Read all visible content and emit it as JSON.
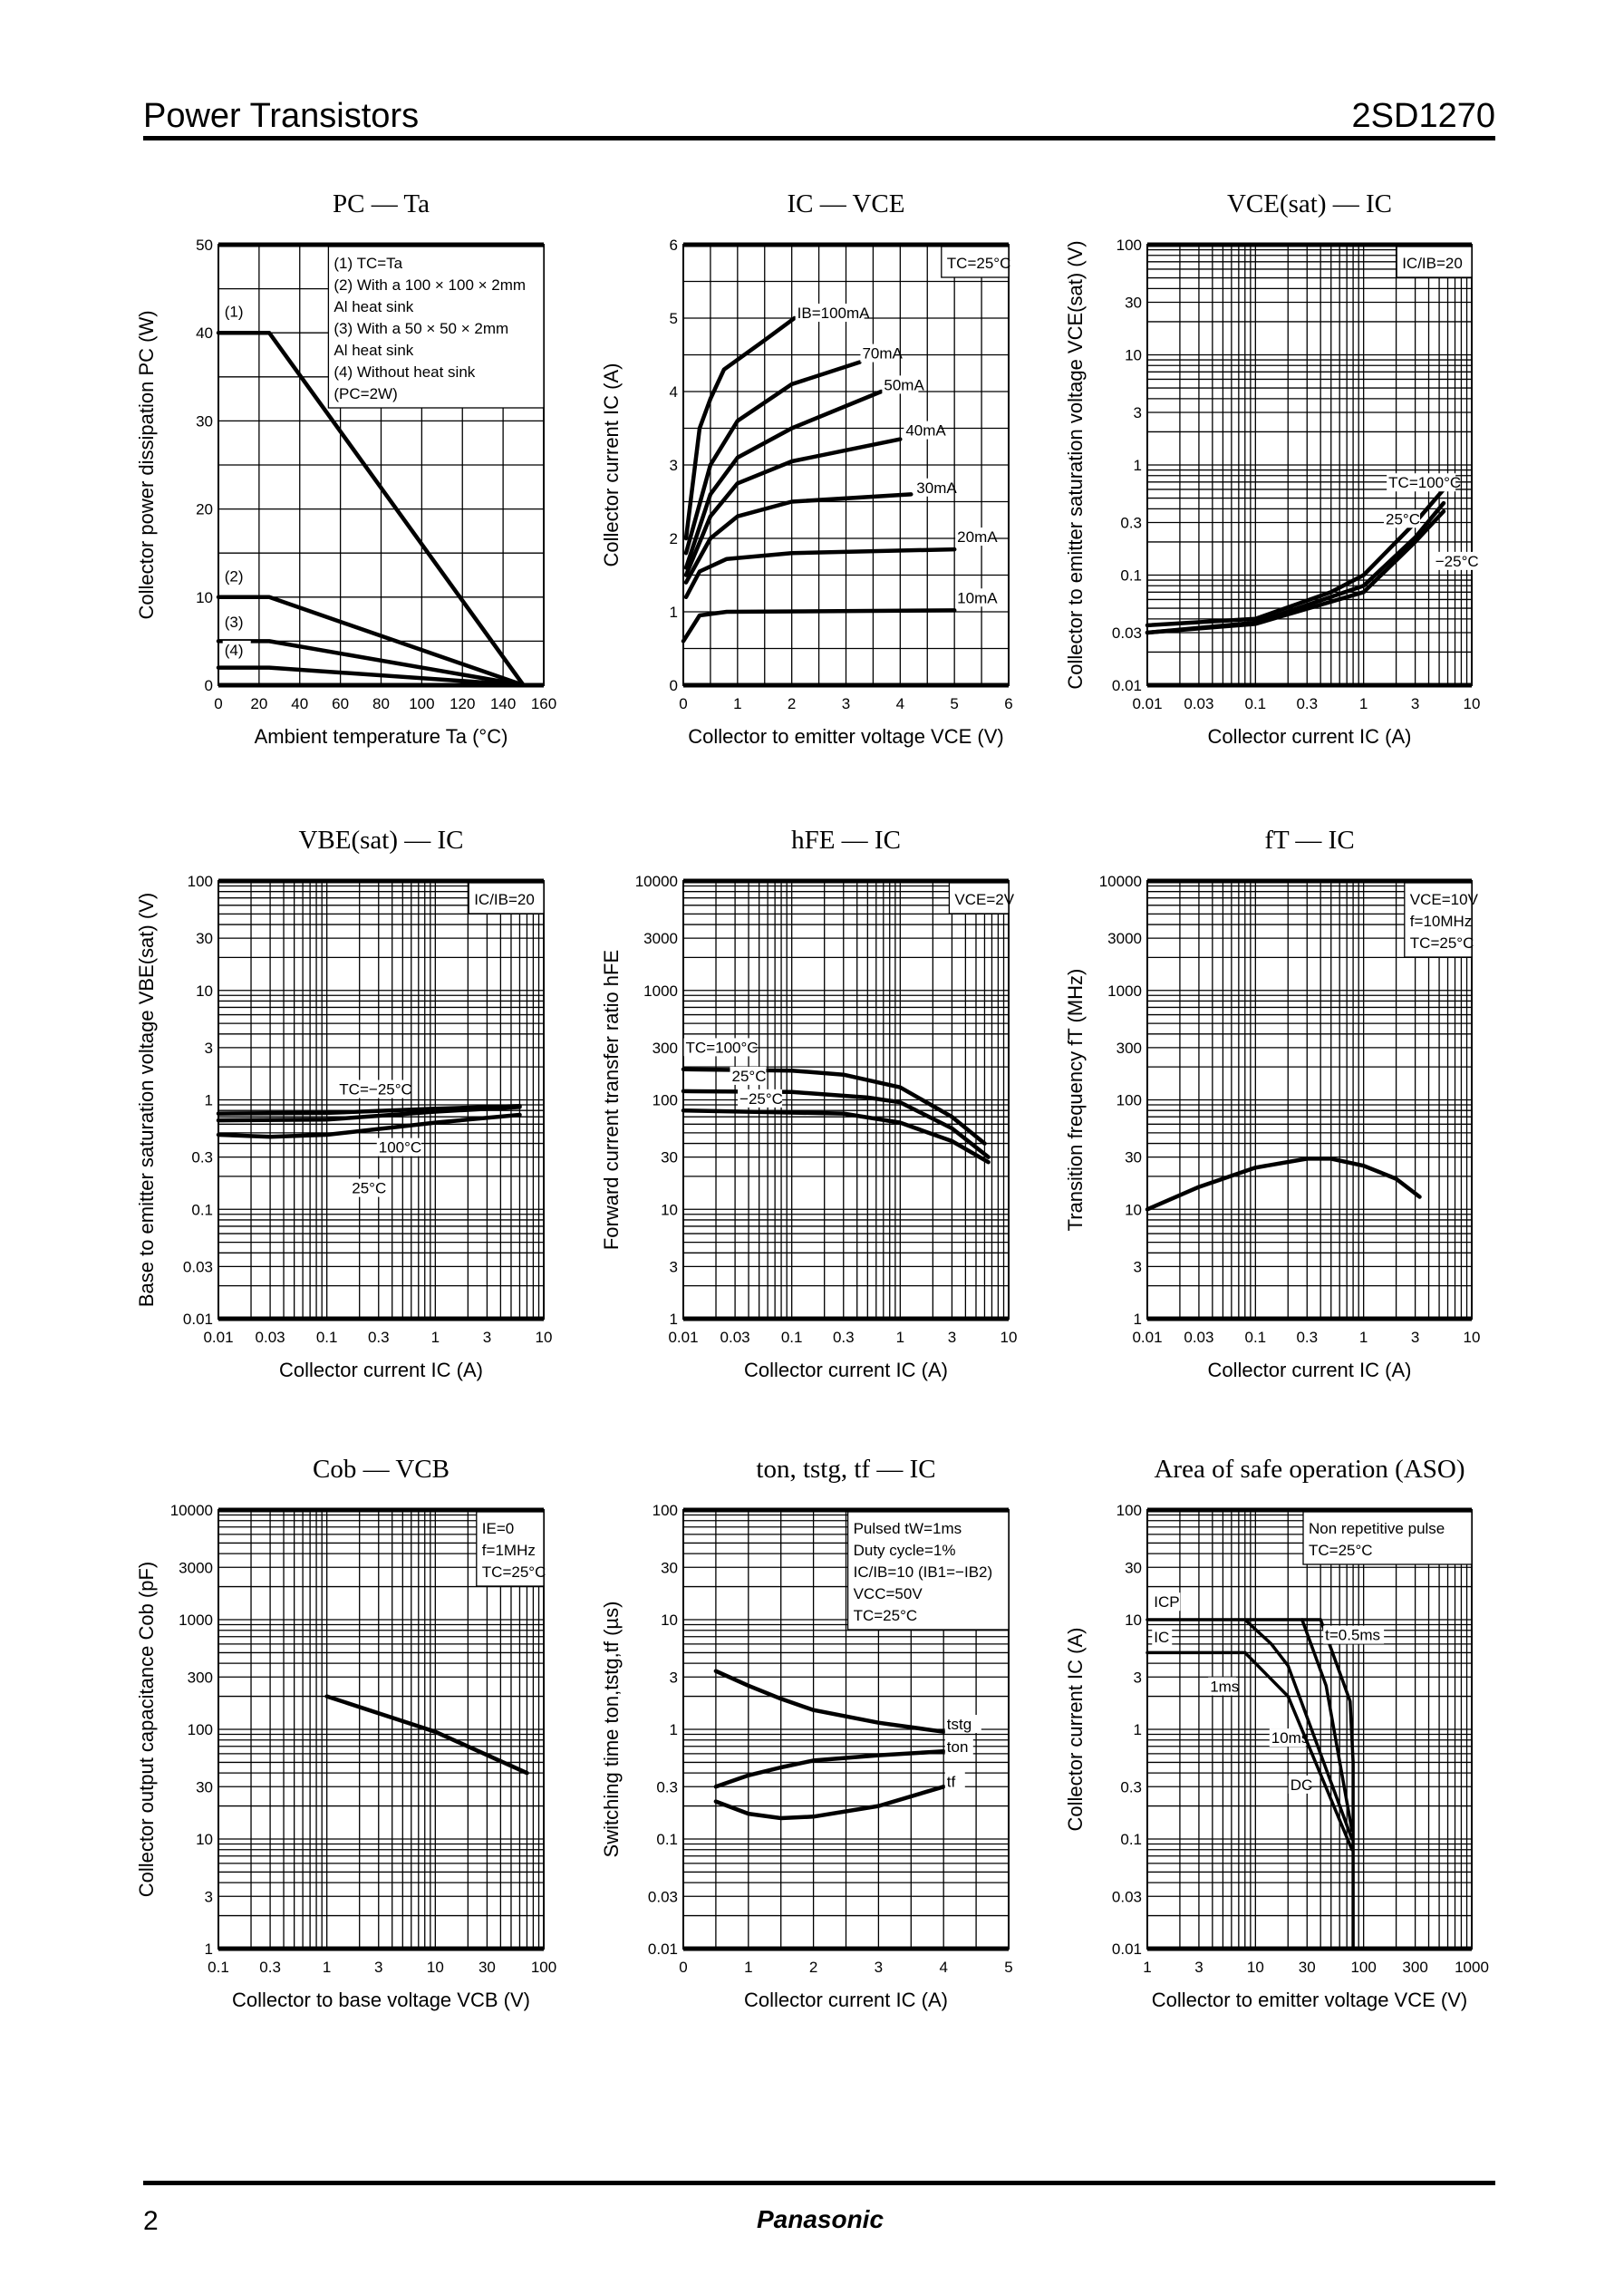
{
  "header": {
    "title": "Power Transistors",
    "part_number": "2SD1270"
  },
  "footer": {
    "page": "2",
    "brand": "Panasonic"
  },
  "chart_data": [
    {
      "type": "line",
      "title": "PC — Ta",
      "xlabel": "Ambient temperature   Ta   (°C)",
      "ylabel": "Collector power dissipation   PC   (W)",
      "xscale": "linear",
      "yscale": "linear",
      "xlim": [
        0,
        160
      ],
      "ylim": [
        0,
        50
      ],
      "xticks": [
        0,
        20,
        40,
        60,
        80,
        100,
        120,
        140,
        160
      ],
      "yticks": [
        0,
        10,
        20,
        30,
        40,
        50
      ],
      "grid": true,
      "legend_box": [
        "(1) TC=Ta",
        "(2) With a 100 × 100 × 2mm",
        "Al heat sink",
        "(3) With a 50 × 50 × 2mm",
        "Al heat sink",
        "(4) Without heat sink",
        "(PC=2W)"
      ],
      "series": [
        {
          "name": "(1)",
          "points": [
            [
              0,
              40
            ],
            [
              25,
              40
            ],
            [
              150,
              0
            ]
          ]
        },
        {
          "name": "(2)",
          "points": [
            [
              0,
              10
            ],
            [
              25,
              10
            ],
            [
              150,
              0
            ]
          ]
        },
        {
          "name": "(3)",
          "points": [
            [
              0,
              5
            ],
            [
              25,
              5
            ],
            [
              150,
              0
            ]
          ]
        },
        {
          "name": "(4)",
          "points": [
            [
              0,
              2
            ],
            [
              25,
              2
            ],
            [
              150,
              0
            ]
          ]
        }
      ]
    },
    {
      "type": "line",
      "title": "IC — VCE",
      "xlabel": "Collector to emitter voltage   VCE   (V)",
      "ylabel": "Collector current   IC   (A)",
      "xscale": "linear",
      "yscale": "linear",
      "xlim": [
        0,
        6
      ],
      "ylim": [
        0,
        6
      ],
      "xticks": [
        0,
        1,
        2,
        3,
        4,
        5,
        6
      ],
      "yticks": [
        0,
        1,
        2,
        3,
        4,
        5,
        6
      ],
      "grid": true,
      "legend_box": [
        "TC=25°C"
      ],
      "series": [
        {
          "name": "IB=100mA",
          "points": [
            [
              0.05,
              2.0
            ],
            [
              0.3,
              3.5
            ],
            [
              0.5,
              3.9
            ],
            [
              0.75,
              4.3
            ],
            [
              1.5,
              4.7
            ],
            [
              2.05,
              5.0
            ]
          ]
        },
        {
          "name": "70mA",
          "points": [
            [
              0.05,
              1.8
            ],
            [
              0.5,
              3.0
            ],
            [
              1,
              3.6
            ],
            [
              2,
              4.1
            ],
            [
              3.25,
              4.4
            ]
          ]
        },
        {
          "name": "50mA",
          "points": [
            [
              0.05,
              1.6
            ],
            [
              0.5,
              2.6
            ],
            [
              1,
              3.1
            ],
            [
              2,
              3.5
            ],
            [
              3.65,
              4.0
            ]
          ]
        },
        {
          "name": "40mA",
          "points": [
            [
              0.05,
              1.5
            ],
            [
              0.5,
              2.3
            ],
            [
              1,
              2.75
            ],
            [
              2,
              3.05
            ],
            [
              4.0,
              3.35
            ]
          ]
        },
        {
          "name": "30mA",
          "points": [
            [
              0.05,
              1.4
            ],
            [
              0.5,
              2.0
            ],
            [
              1,
              2.3
            ],
            [
              2,
              2.5
            ],
            [
              4.2,
              2.6
            ]
          ]
        },
        {
          "name": "20mA",
          "points": [
            [
              0.05,
              1.2
            ],
            [
              0.3,
              1.55
            ],
            [
              0.8,
              1.72
            ],
            [
              2,
              1.8
            ],
            [
              5.0,
              1.85
            ]
          ]
        },
        {
          "name": "10mA",
          "points": [
            [
              0.0,
              0.6
            ],
            [
              0.3,
              0.95
            ],
            [
              0.8,
              1.0
            ],
            [
              5.0,
              1.02
            ]
          ]
        }
      ]
    },
    {
      "type": "line",
      "title": "VCE(sat) — IC",
      "xlabel": "Collector current   IC   (A)",
      "ylabel": "Collector to emitter saturation voltage   VCE(sat)   (V)",
      "xscale": "log",
      "yscale": "log",
      "xlim": [
        0.01,
        10
      ],
      "ylim": [
        0.01,
        100
      ],
      "xticks": [
        0.01,
        0.03,
        0.1,
        0.3,
        1,
        3,
        10
      ],
      "yticks": [
        0.01,
        0.03,
        0.1,
        0.3,
        1,
        3,
        10,
        30,
        100
      ],
      "grid": true,
      "legend_box": [
        "IC/IB=20"
      ],
      "series": [
        {
          "name": "TC=100°C",
          "points": [
            [
              0.01,
              0.035
            ],
            [
              0.1,
              0.04
            ],
            [
              0.5,
              0.07
            ],
            [
              1,
              0.1
            ],
            [
              3,
              0.3
            ],
            [
              5.5,
              0.6
            ]
          ]
        },
        {
          "name": "25°C",
          "points": [
            [
              0.01,
              0.03
            ],
            [
              0.1,
              0.037
            ],
            [
              1,
              0.08
            ],
            [
              3,
              0.22
            ],
            [
              5.5,
              0.45
            ]
          ]
        },
        {
          "name": "−25°C",
          "points": [
            [
              0.01,
              0.03
            ],
            [
              0.1,
              0.036
            ],
            [
              1,
              0.07
            ],
            [
              3,
              0.2
            ],
            [
              5.5,
              0.38
            ]
          ]
        }
      ]
    },
    {
      "type": "line",
      "title": "VBE(sat) — IC",
      "xlabel": "Collector current   IC   (A)",
      "ylabel": "Base to emitter saturation voltage   VBE(sat)   (V)",
      "xscale": "log",
      "yscale": "log",
      "xlim": [
        0.01,
        10
      ],
      "ylim": [
        0.01,
        100
      ],
      "xticks": [
        0.01,
        0.03,
        0.1,
        0.3,
        1,
        3,
        10
      ],
      "yticks": [
        0.01,
        0.03,
        0.1,
        0.3,
        1,
        3,
        10,
        30,
        100
      ],
      "grid": true,
      "legend_box": [
        "IC/IB=20"
      ],
      "series": [
        {
          "name": "TC=−25°C",
          "points": [
            [
              0.01,
              0.75
            ],
            [
              0.1,
              0.76
            ],
            [
              1,
              0.83
            ],
            [
              6,
              0.88
            ]
          ]
        },
        {
          "name": "100°C",
          "points": [
            [
              0.01,
              0.48
            ],
            [
              0.03,
              0.46
            ],
            [
              0.1,
              0.48
            ],
            [
              1,
              0.62
            ],
            [
              6,
              0.73
            ]
          ]
        },
        {
          "name": "25°C",
          "points": [
            [
              0.01,
              0.65
            ],
            [
              0.1,
              0.66
            ],
            [
              1,
              0.78
            ],
            [
              6,
              0.86
            ]
          ]
        }
      ]
    },
    {
      "type": "line",
      "title": "hFE — IC",
      "xlabel": "Collector current   IC   (A)",
      "ylabel": "Forward current transfer ratio   hFE",
      "xscale": "log",
      "yscale": "log",
      "xlim": [
        0.01,
        10
      ],
      "ylim": [
        1,
        10000
      ],
      "xticks": [
        0.01,
        0.03,
        0.1,
        0.3,
        1,
        3,
        10
      ],
      "yticks": [
        1,
        3,
        10,
        30,
        100,
        300,
        1000,
        3000,
        10000
      ],
      "grid": true,
      "legend_box": [
        "VCE=2V"
      ],
      "series": [
        {
          "name": "TC=100°C",
          "points": [
            [
              0.01,
              190
            ],
            [
              0.1,
              185
            ],
            [
              0.3,
              170
            ],
            [
              1,
              130
            ],
            [
              3,
              70
            ],
            [
              6,
              40
            ]
          ]
        },
        {
          "name": "25°C",
          "points": [
            [
              0.01,
              120
            ],
            [
              0.1,
              118
            ],
            [
              0.5,
              105
            ],
            [
              1,
              95
            ],
            [
              3,
              55
            ],
            [
              6.5,
              30
            ]
          ]
        },
        {
          "name": "−25°C",
          "points": [
            [
              0.01,
              80
            ],
            [
              0.3,
              75
            ],
            [
              1,
              62
            ],
            [
              3,
              42
            ],
            [
              6.5,
              27
            ]
          ]
        }
      ]
    },
    {
      "type": "line",
      "title": "fT — IC",
      "xlabel": "Collector current   IC   (A)",
      "ylabel": "Transition frequency   fT   (MHz)",
      "xscale": "log",
      "yscale": "log",
      "xlim": [
        0.01,
        10
      ],
      "ylim": [
        1,
        10000
      ],
      "xticks": [
        0.01,
        0.03,
        0.1,
        0.3,
        1,
        3,
        10
      ],
      "yticks": [
        1,
        3,
        10,
        30,
        100,
        300,
        1000,
        3000,
        10000
      ],
      "grid": true,
      "legend_box": [
        "VCE=10V",
        "f=10MHz",
        "TC=25°C"
      ],
      "series": [
        {
          "points": [
            [
              0.01,
              10
            ],
            [
              0.03,
              16
            ],
            [
              0.1,
              24
            ],
            [
              0.3,
              29
            ],
            [
              0.5,
              29
            ],
            [
              1,
              25
            ],
            [
              2,
              19
            ],
            [
              3.3,
              13
            ]
          ]
        }
      ]
    },
    {
      "type": "line",
      "title": "Cob — VCB",
      "xlabel": "Collector to base voltage   VCB   (V)",
      "ylabel": "Collector output capacitance   Cob   (pF)",
      "xscale": "log",
      "yscale": "log",
      "xlim": [
        0.1,
        100
      ],
      "ylim": [
        1,
        10000
      ],
      "xticks": [
        0.1,
        0.3,
        1,
        3,
        10,
        30,
        100
      ],
      "yticks": [
        1,
        3,
        10,
        30,
        100,
        300,
        1000,
        3000,
        10000
      ],
      "grid": true,
      "legend_box": [
        "IE=0",
        "f=1MHz",
        "TC=25°C"
      ],
      "series": [
        {
          "points": [
            [
              1,
              200
            ],
            [
              10,
              95
            ],
            [
              70,
              40
            ]
          ]
        }
      ]
    },
    {
      "type": "line",
      "title": "ton, tstg, tf — IC",
      "xlabel": "Collector current   IC   (A)",
      "ylabel": "Switching time   ton,tstg,tf   (µs)",
      "xscale": "linear",
      "yscale": "log",
      "xlim": [
        0,
        5
      ],
      "ylim": [
        0.01,
        100
      ],
      "xticks": [
        0,
        1,
        2,
        3,
        4,
        5
      ],
      "yticks": [
        0.01,
        0.03,
        0.1,
        0.3,
        1,
        3,
        10,
        30,
        100
      ],
      "grid": true,
      "legend_box": [
        "Pulsed tW=1ms",
        "Duty cycle=1%",
        "IC/IB=10 (IB1=−IB2)",
        "VCC=50V",
        "TC=25°C"
      ],
      "series": [
        {
          "name": "tstg",
          "points": [
            [
              0.5,
              3.4
            ],
            [
              1,
              2.5
            ],
            [
              1.5,
              1.9
            ],
            [
              2,
              1.5
            ],
            [
              3,
              1.15
            ],
            [
              4,
              0.95
            ]
          ]
        },
        {
          "name": "ton",
          "points": [
            [
              0.5,
              0.3
            ],
            [
              1,
              0.38
            ],
            [
              1.5,
              0.45
            ],
            [
              2,
              0.52
            ],
            [
              3,
              0.58
            ],
            [
              4,
              0.63
            ]
          ]
        },
        {
          "name": "tf",
          "points": [
            [
              0.5,
              0.22
            ],
            [
              1,
              0.17
            ],
            [
              1.5,
              0.155
            ],
            [
              2,
              0.16
            ],
            [
              3,
              0.2
            ],
            [
              4,
              0.3
            ]
          ]
        }
      ]
    },
    {
      "type": "line",
      "title": "Area of safe operation (ASO)",
      "xlabel": "Collector to emitter voltage   VCE   (V)",
      "ylabel": "Collector current   IC   (A)",
      "xscale": "log",
      "yscale": "log",
      "xlim": [
        1,
        1000
      ],
      "ylim": [
        0.01,
        100
      ],
      "xticks": [
        1,
        3,
        10,
        30,
        100,
        300,
        1000
      ],
      "yticks": [
        0.01,
        0.03,
        0.1,
        0.3,
        1,
        3,
        10,
        30,
        100
      ],
      "grid": true,
      "legend_box": [
        "Non repetitive pulse",
        "TC=25°C"
      ],
      "series": [
        {
          "name": "ICP",
          "points": [
            [
              1,
              10
            ],
            [
              40,
              10
            ]
          ]
        },
        {
          "name": "IC",
          "points": [
            [
              1,
              5
            ],
            [
              8,
              5
            ]
          ]
        },
        {
          "name": "t=0.5ms",
          "points": [
            [
              40,
              10
            ],
            [
              75,
              1.8
            ],
            [
              80,
              0.5
            ]
          ]
        },
        {
          "name": "1ms",
          "points": [
            [
              27,
              10
            ],
            [
              45,
              2.5
            ],
            [
              78,
              0.12
            ]
          ]
        },
        {
          "name": "10ms",
          "points": [
            [
              8,
              10
            ],
            [
              14,
              6
            ],
            [
              20,
              3.8
            ],
            [
              78,
              0.1
            ]
          ]
        },
        {
          "name": "DC",
          "points": [
            [
              8,
              5
            ],
            [
              20,
              2
            ],
            [
              78,
              0.08
            ]
          ]
        },
        {
          "points": [
            [
              80,
              0.01
            ],
            [
              80,
              0.5
            ]
          ]
        }
      ]
    }
  ]
}
